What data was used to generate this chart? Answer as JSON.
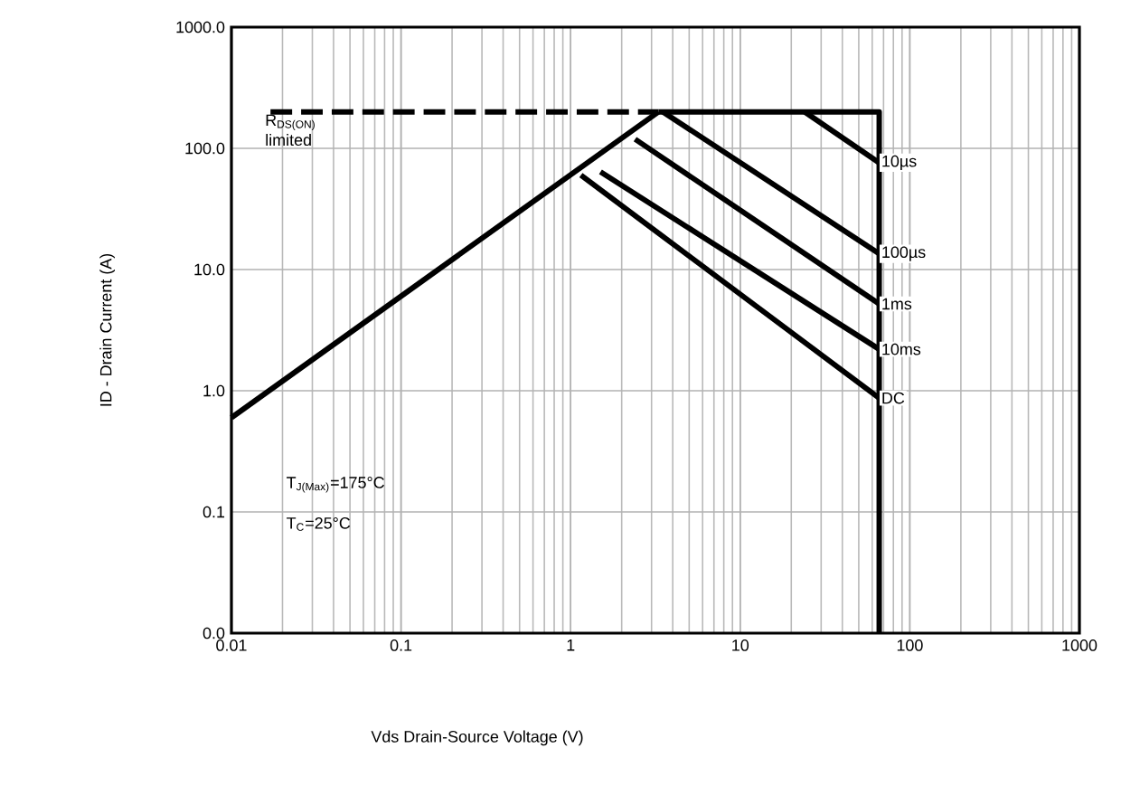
{
  "chart_data": {
    "type": "line",
    "xlabel": "Vds Drain-Source Voltage (V)",
    "ylabel": "ID - Drain Current (A)",
    "log": "xy",
    "grid": true,
    "marker": "none",
    "xlim": [
      0.01,
      1000
    ],
    "ylim": [
      0.01,
      1000
    ],
    "xticks": [
      0.01,
      0.1,
      1,
      10,
      100,
      1000
    ],
    "yticks": [
      {
        "value": 1000,
        "label": "1000.0"
      },
      {
        "value": 100,
        "label": "100.0"
      },
      {
        "value": 10,
        "label": "10.0"
      },
      {
        "value": 1,
        "label": "1.0"
      },
      {
        "value": 0.1,
        "label": "0.1"
      },
      {
        "value": 0.01,
        "label": "0.0"
      }
    ],
    "annotations": [
      "R$_{DS(ON)}$ limited",
      "T$_{J(Max)}$=175°C",
      "T$_{C}$=25°C"
    ],
    "series": [
      {
        "color": "#000000",
        "x": [
          0.01,
          3.3
        ],
        "values": [
          0.6,
          200
        ],
        "line_style": "solid"
      },
      {
        "color": "#000000",
        "x": [
          0.017,
          3.3
        ],
        "values": [
          200,
          200
        ],
        "line_style": "dashed"
      },
      {
        "color": "#000000",
        "x": [
          3.3,
          66,
          66
        ],
        "values": [
          200,
          200,
          0.01
        ],
        "line_style": "solid"
      },
      {
        "name": "10µs",
        "color": "#000000",
        "x": [
          24,
          66
        ],
        "values": [
          200,
          76
        ],
        "line_style": "solid"
      },
      {
        "name": "100µs",
        "color": "#000000",
        "x": [
          3.5,
          66
        ],
        "values": [
          200,
          13.5
        ],
        "line_style": "solid"
      },
      {
        "name": "1ms",
        "color": "#000000",
        "x": [
          2.4,
          66
        ],
        "values": [
          119,
          5.2
        ],
        "line_style": "solid"
      },
      {
        "name": "10ms",
        "color": "#000000",
        "x": [
          1.5,
          66
        ],
        "values": [
          64,
          2.2
        ],
        "line_style": "solid"
      },
      {
        "name": "DC",
        "color": "#000000",
        "x": [
          1.15,
          66
        ],
        "values": [
          60,
          0.87
        ],
        "line_style": "solid"
      }
    ]
  }
}
